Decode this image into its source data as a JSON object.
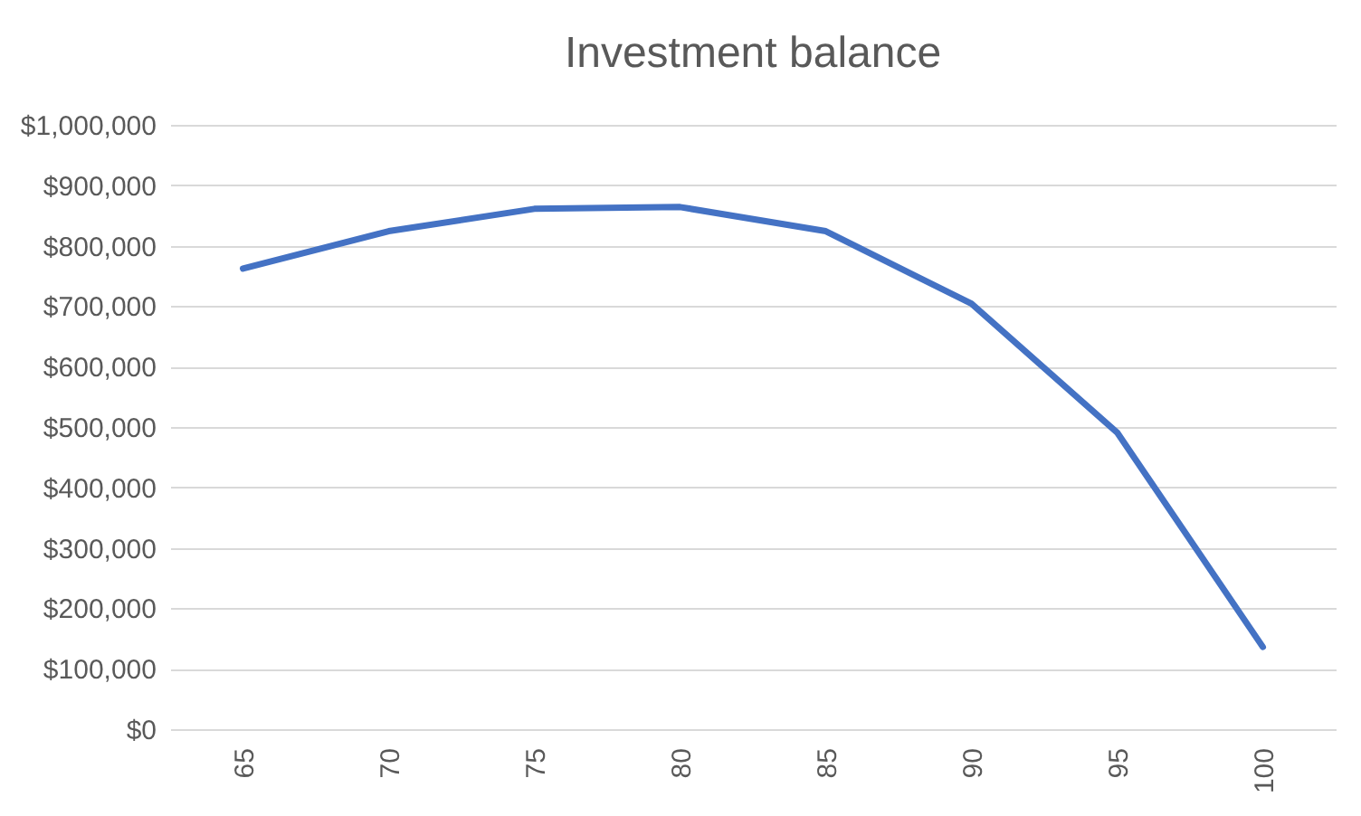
{
  "chart_data": {
    "type": "line",
    "title": "Investment balance",
    "categories": [
      "65",
      "70",
      "75",
      "80",
      "85",
      "90",
      "95",
      "100"
    ],
    "series": [
      {
        "color": "#4472c4",
        "values": [
          762000,
          824000,
          861000,
          864000,
          824000,
          704000,
          491000,
          136000
        ]
      }
    ],
    "ylim": [
      0,
      1000000
    ],
    "yticks": [
      {
        "value": 0,
        "label": "$0"
      },
      {
        "value": 100000,
        "label": "$100,000"
      },
      {
        "value": 200000,
        "label": "$200,000"
      },
      {
        "value": 300000,
        "label": "$300,000"
      },
      {
        "value": 400000,
        "label": "$400,000"
      },
      {
        "value": 500000,
        "label": "$500,000"
      },
      {
        "value": 600000,
        "label": "$600,000"
      },
      {
        "value": 700000,
        "label": "$700,000"
      },
      {
        "value": 800000,
        "label": "$800,000"
      },
      {
        "value": 900000,
        "label": "$900,000"
      },
      {
        "value": 1000000,
        "label": "$1,000,000"
      }
    ],
    "grid": "y",
    "legend": false,
    "marker": "none",
    "line_style": "solid"
  }
}
